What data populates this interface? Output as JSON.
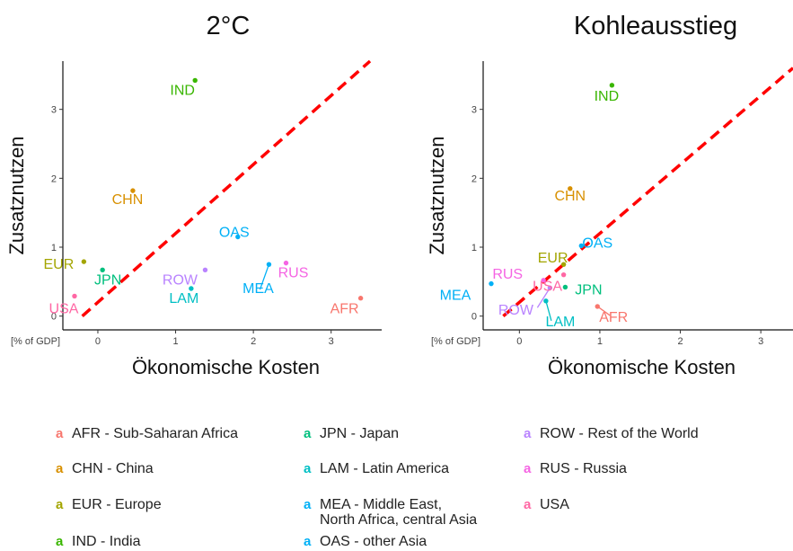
{
  "chart_data": [
    {
      "type": "scatter",
      "title": "2°C",
      "xlabel": "Ökonomische Kosten",
      "ylabel": "Zusatznutzen",
      "unit_label": "[% of GDP]",
      "xlim": [
        -0.45,
        3.65
      ],
      "ylim": [
        -0.2,
        3.7
      ],
      "x_ticks": [
        0,
        1,
        2,
        3
      ],
      "y_ticks": [
        0,
        1,
        2,
        3
      ],
      "grid": false,
      "reference_line": {
        "style": "dashed",
        "color": "#ff0000",
        "x_at_y0": -0.2,
        "slope": 1.0
      },
      "points": [
        {
          "region": "AFR",
          "x": 3.38,
          "y": 0.26,
          "color": "#f8766d"
        },
        {
          "region": "CHN",
          "x": 0.45,
          "y": 1.82,
          "color": "#d89000"
        },
        {
          "region": "EUR",
          "x": -0.18,
          "y": 0.79,
          "color": "#a3a500"
        },
        {
          "region": "IND",
          "x": 1.25,
          "y": 3.42,
          "color": "#39b600"
        },
        {
          "region": "JPN",
          "x": 0.06,
          "y": 0.67,
          "color": "#00bf7d"
        },
        {
          "region": "LAM",
          "x": 1.2,
          "y": 0.4,
          "color": "#00bfc4"
        },
        {
          "region": "MEA",
          "x": 2.2,
          "y": 0.75,
          "color": "#00b0f6"
        },
        {
          "region": "OAS",
          "x": 1.8,
          "y": 1.15,
          "color": "#00b0f6"
        },
        {
          "region": "ROW",
          "x": 1.38,
          "y": 0.67,
          "color": "#b983ff"
        },
        {
          "region": "RUS",
          "x": 2.42,
          "y": 0.77,
          "color": "#f564e3"
        },
        {
          "region": "USA",
          "x": -0.3,
          "y": 0.29,
          "color": "#ff67a4"
        }
      ]
    },
    {
      "type": "scatter",
      "title": "Kohleausstieg",
      "xlabel": "Ökonomische Kosten",
      "ylabel": "Zusatznutzen",
      "unit_label": "[% of GDP]",
      "xlim": [
        -0.45,
        3.4
      ],
      "ylim": [
        -0.2,
        3.7
      ],
      "x_ticks": [
        0,
        1,
        2,
        3
      ],
      "y_ticks": [
        0,
        1,
        2,
        3
      ],
      "grid": false,
      "reference_line": {
        "style": "dashed",
        "color": "#ff0000",
        "x_at_y0": -0.2,
        "slope": 1.0
      },
      "points": [
        {
          "region": "AFR",
          "x": 0.97,
          "y": 0.14,
          "color": "#f8766d"
        },
        {
          "region": "CHN",
          "x": 0.63,
          "y": 1.85,
          "color": "#d89000"
        },
        {
          "region": "EUR",
          "x": 0.55,
          "y": 0.75,
          "color": "#a3a500"
        },
        {
          "region": "IND",
          "x": 1.15,
          "y": 3.35,
          "color": "#39b600"
        },
        {
          "region": "JPN",
          "x": 0.57,
          "y": 0.42,
          "color": "#00bf7d"
        },
        {
          "region": "LAM",
          "x": 0.33,
          "y": 0.22,
          "color": "#00bfc4"
        },
        {
          "region": "MEA",
          "x": -0.35,
          "y": 0.47,
          "color": "#00b0f6"
        },
        {
          "region": "OAS",
          "x": 0.77,
          "y": 1.02,
          "color": "#00b0f6"
        },
        {
          "region": "ROW",
          "x": 0.38,
          "y": 0.41,
          "color": "#b983ff"
        },
        {
          "region": "RUS",
          "x": 0.3,
          "y": 0.52,
          "color": "#f564e3"
        },
        {
          "region": "USA",
          "x": 0.55,
          "y": 0.6,
          "color": "#ff67a4"
        }
      ]
    }
  ],
  "legend": {
    "key_glyph": "a",
    "items": [
      {
        "label": "AFR - Sub-Saharan Africa",
        "color": "#f8766d"
      },
      {
        "label": "CHN - China",
        "color": "#d89000"
      },
      {
        "label": "EUR - Europe",
        "color": "#a3a500"
      },
      {
        "label": "IND - India",
        "color": "#39b600"
      },
      {
        "label": "JPN - Japan",
        "color": "#00bf7d"
      },
      {
        "label": "LAM - Latin America",
        "color": "#00bfc4"
      },
      {
        "label": "MEA - Middle East,\nNorth Africa, central Asia",
        "color": "#00b0f6"
      },
      {
        "label": "OAS - other Asia",
        "color": "#00b0f6"
      },
      {
        "label": "ROW - Rest of the World",
        "color": "#b983ff"
      },
      {
        "label": "RUS - Russia",
        "color": "#f564e3"
      },
      {
        "label": "USA",
        "color": "#ff67a4"
      }
    ]
  }
}
